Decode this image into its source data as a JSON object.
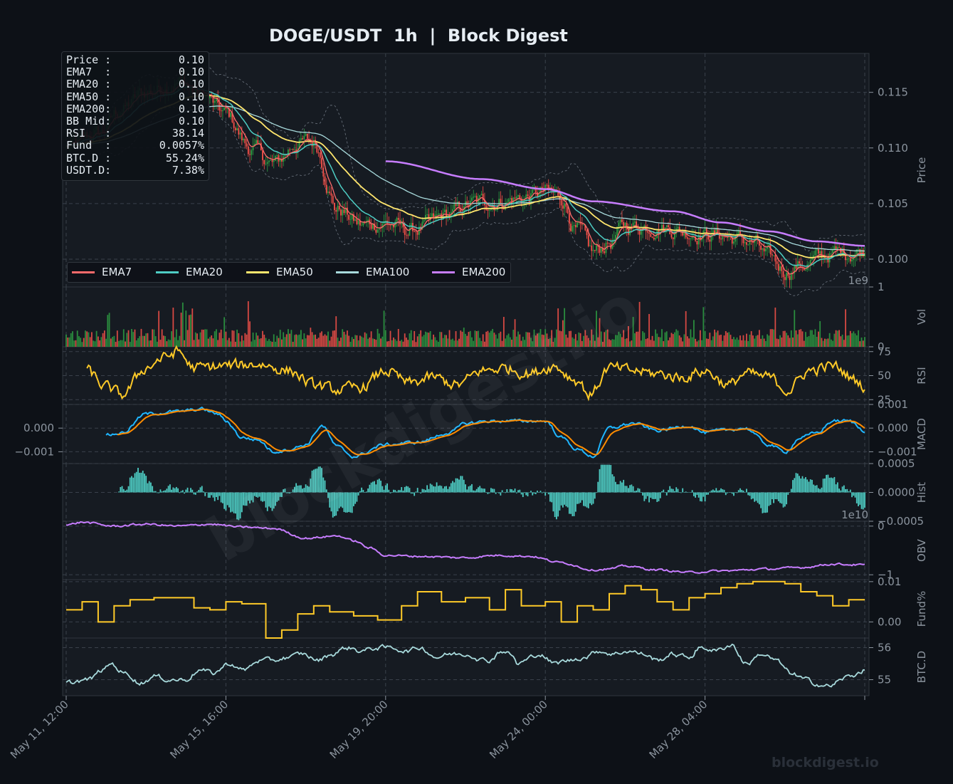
{
  "title": "DOGE/USDT  1h  |  Block Digest",
  "watermark": "blockdigest.io",
  "footer": "blockdigest.io",
  "colors": {
    "background": "#0d1117",
    "panel": "#161b22",
    "grid": "#3a414b",
    "text": "#8b949e",
    "up": "#2ea043",
    "down": "#f85149",
    "ema7": "#ff6b6b",
    "ema20": "#4ecdc4",
    "ema50": "#ffe66d",
    "ema100": "#a8dadc",
    "ema200": "#c77dff",
    "rsi": "#ffca28",
    "macd": "#1fb6ff",
    "signal": "#ff8c00",
    "hist": "#4ecdc4",
    "obv": "#c77dff",
    "fund": "#ffca28",
    "btcd": "#a8dadc"
  },
  "info_box": [
    {
      "key": "Price :",
      "value": "0.10"
    },
    {
      "key": "EMA7  :",
      "value": "0.10"
    },
    {
      "key": "EMA20 :",
      "value": "0.10"
    },
    {
      "key": "EMA50 :",
      "value": "0.10"
    },
    {
      "key": "EMA200:",
      "value": "0.10"
    },
    {
      "key": "BB Mid:",
      "value": "0.10"
    },
    {
      "key": "RSI   :",
      "value": "38.14"
    },
    {
      "key": "Fund  :",
      "value": "0.0057%"
    },
    {
      "key": "BTC.D :",
      "value": "55.24%"
    },
    {
      "key": "USDT.D:",
      "value": "7.38%"
    }
  ],
  "legend": [
    "EMA7",
    "EMA20",
    "EMA50",
    "EMA100",
    "EMA200"
  ],
  "chart_data": {
    "type": "line",
    "x_ticks": [
      "May 11, 12:00",
      "May 15, 16:00",
      "May 19, 20:00",
      "May 24, 00:00",
      "May 28, 04:00"
    ],
    "bars": 501,
    "panels": [
      {
        "id": "price",
        "ylabel": "Price",
        "ylim": [
          0.0975,
          0.1185
        ],
        "ticks": [
          "0.115",
          "0.110",
          "0.105",
          "0.100"
        ],
        "tick_values": [
          0.115,
          0.11,
          0.105,
          0.1
        ],
        "series_names": [
          "EMA7",
          "EMA20",
          "EMA50",
          "EMA100",
          "EMA200"
        ],
        "anchors": [
          [
            0,
            0.11
          ],
          [
            20,
            0.1112
          ],
          [
            35,
            0.1135
          ],
          [
            50,
            0.115
          ],
          [
            70,
            0.116
          ],
          [
            85,
            0.1148
          ],
          [
            100,
            0.113
          ],
          [
            115,
            0.11
          ],
          [
            130,
            0.1085
          ],
          [
            145,
            0.1105
          ],
          [
            155,
            0.1105
          ],
          [
            170,
            0.1045
          ],
          [
            185,
            0.103
          ],
          [
            200,
            0.1033
          ],
          [
            215,
            0.1025
          ],
          [
            225,
            0.103
          ],
          [
            240,
            0.104
          ],
          [
            255,
            0.105
          ],
          [
            270,
            0.1052
          ],
          [
            285,
            0.1055
          ],
          [
            300,
            0.106
          ],
          [
            310,
            0.1055
          ],
          [
            320,
            0.1025
          ],
          [
            330,
            0.1005
          ],
          [
            340,
            0.1015
          ],
          [
            350,
            0.103
          ],
          [
            370,
            0.103
          ],
          [
            390,
            0.1025
          ],
          [
            410,
            0.1022
          ],
          [
            420,
            0.1018
          ],
          [
            430,
            0.1015
          ],
          [
            440,
            0.1
          ],
          [
            450,
            0.099
          ],
          [
            460,
            0.0995
          ],
          [
            480,
            0.1005
          ],
          [
            500,
            0.1008
          ]
        ],
        "ema200_anchors": [
          [
            200,
            0.1088
          ],
          [
            260,
            0.1072
          ],
          [
            300,
            0.1063
          ],
          [
            330,
            0.1052
          ],
          [
            380,
            0.1043
          ],
          [
            410,
            0.1033
          ],
          [
            440,
            0.1025
          ],
          [
            470,
            0.1016
          ],
          [
            500,
            0.1012
          ]
        ],
        "exponent_label": "1e9"
      },
      {
        "id": "vol",
        "ylabel": "Vol",
        "ylim": [
          0,
          1.0
        ],
        "ticks": [
          "1",
          "0"
        ],
        "tick_values": [
          1.0,
          0.0
        ]
      },
      {
        "id": "rsi",
        "ylabel": "RSI",
        "ylim": [
          20,
          80
        ],
        "ticks": [
          "75",
          "50",
          "25"
        ],
        "tick_values": [
          75,
          50,
          25
        ],
        "anchors": [
          [
            13,
            55
          ],
          [
            25,
            38
          ],
          [
            35,
            30
          ],
          [
            50,
            58
          ],
          [
            60,
            68
          ],
          [
            70,
            75
          ],
          [
            80,
            58
          ],
          [
            100,
            60
          ],
          [
            120,
            62
          ],
          [
            140,
            55
          ],
          [
            155,
            40
          ],
          [
            170,
            35
          ],
          [
            185,
            38
          ],
          [
            200,
            55
          ],
          [
            215,
            42
          ],
          [
            230,
            48
          ],
          [
            245,
            40
          ],
          [
            260,
            55
          ],
          [
            275,
            58
          ],
          [
            290,
            52
          ],
          [
            305,
            60
          ],
          [
            320,
            45
          ],
          [
            328,
            30
          ],
          [
            340,
            58
          ],
          [
            355,
            55
          ],
          [
            370,
            52
          ],
          [
            385,
            48
          ],
          [
            400,
            55
          ],
          [
            415,
            40
          ],
          [
            425,
            52
          ],
          [
            440,
            48
          ],
          [
            452,
            35
          ],
          [
            465,
            55
          ],
          [
            480,
            60
          ],
          [
            495,
            45
          ],
          [
            500,
            38
          ]
        ]
      },
      {
        "id": "macd",
        "ylabel": "MACD",
        "ylim": [
          -0.0015,
          0.001
        ],
        "ticks": [
          "0.001",
          "0.000",
          "−0.001"
        ],
        "tick_values": [
          0.001,
          0.0,
          -0.001
        ],
        "left_ticks": [
          "0.000",
          "−0.001"
        ],
        "left_tick_values": [
          0.0,
          -0.001
        ],
        "anchors": [
          [
            25,
            -0.0003
          ],
          [
            35,
            -0.0002
          ],
          [
            50,
            0.0006
          ],
          [
            70,
            0.0007
          ],
          [
            85,
            0.0008
          ],
          [
            95,
            0.0006
          ],
          [
            100,
            0.0003
          ],
          [
            110,
            -0.0004
          ],
          [
            120,
            -0.0005
          ],
          [
            130,
            -0.001
          ],
          [
            140,
            -0.0009
          ],
          [
            150,
            -0.0007
          ],
          [
            160,
            0.0001
          ],
          [
            170,
            -0.0008
          ],
          [
            180,
            -0.0012
          ],
          [
            200,
            -0.0007
          ],
          [
            220,
            -0.0006
          ],
          [
            240,
            -0.0002
          ],
          [
            250,
            0.0002
          ],
          [
            265,
            0.0003
          ],
          [
            280,
            0.0003
          ],
          [
            290,
            0.0003
          ],
          [
            300,
            0.0003
          ],
          [
            310,
            -0.0004
          ],
          [
            320,
            -0.0009
          ],
          [
            330,
            -0.0012
          ],
          [
            340,
            0.0
          ],
          [
            355,
            0.0002
          ],
          [
            370,
            -0.0001
          ],
          [
            390,
            0.0001
          ],
          [
            400,
            -0.0002
          ],
          [
            410,
            -0.0001
          ],
          [
            425,
            0.0
          ],
          [
            440,
            -0.0007
          ],
          [
            450,
            -0.001
          ],
          [
            460,
            -0.0004
          ],
          [
            470,
            -0.0002
          ],
          [
            480,
            0.0003
          ],
          [
            490,
            0.0003
          ],
          [
            500,
            -0.0001
          ]
        ]
      },
      {
        "id": "hist",
        "ylabel": "Hist",
        "ylim": [
          -0.0005,
          0.0005
        ],
        "ticks": [
          "0.0005",
          "0.0000",
          "−0.0005"
        ],
        "tick_values": [
          0.0005,
          0.0,
          -0.0005
        ],
        "exponent_label": "1e10"
      },
      {
        "id": "obv",
        "ylabel": "OBV",
        "ylim": [
          -1.1,
          0.1
        ],
        "ticks": [
          "0",
          "−1"
        ],
        "tick_values": [
          0,
          -1
        ],
        "anchors": [
          [
            0,
            0.02
          ],
          [
            10,
            0.08
          ],
          [
            30,
            0.0
          ],
          [
            50,
            0.04
          ],
          [
            70,
            0.0
          ],
          [
            90,
            0.04
          ],
          [
            110,
            -0.02
          ],
          [
            130,
            -0.05
          ],
          [
            150,
            -0.25
          ],
          [
            170,
            -0.2
          ],
          [
            180,
            -0.3
          ],
          [
            190,
            -0.45
          ],
          [
            200,
            -0.6
          ],
          [
            220,
            -0.62
          ],
          [
            250,
            -0.65
          ],
          [
            270,
            -0.6
          ],
          [
            290,
            -0.62
          ],
          [
            310,
            -0.75
          ],
          [
            330,
            -0.9
          ],
          [
            340,
            -0.88
          ],
          [
            350,
            -0.82
          ],
          [
            370,
            -0.9
          ],
          [
            390,
            -0.95
          ],
          [
            410,
            -0.92
          ],
          [
            440,
            -0.88
          ],
          [
            460,
            -0.85
          ],
          [
            480,
            -0.78
          ],
          [
            500,
            -0.8
          ]
        ]
      },
      {
        "id": "fund",
        "ylabel": "Fund%",
        "ylim": [
          -0.004,
          0.0105
        ],
        "ticks": [
          "0.01",
          "0.00"
        ],
        "tick_values": [
          0.01,
          0.0
        ],
        "anchors": [
          [
            0,
            0.003
          ],
          [
            10,
            0.005
          ],
          [
            20,
            0.0
          ],
          [
            30,
            0.004
          ],
          [
            40,
            0.0055
          ],
          [
            55,
            0.006
          ],
          [
            70,
            0.006
          ],
          [
            80,
            0.0035
          ],
          [
            90,
            0.003
          ],
          [
            100,
            0.005
          ],
          [
            110,
            0.0045
          ],
          [
            125,
            -0.004
          ],
          [
            135,
            -0.002
          ],
          [
            145,
            0.002
          ],
          [
            155,
            0.004
          ],
          [
            165,
            0.0025
          ],
          [
            180,
            0.0015
          ],
          [
            195,
            0.0005
          ],
          [
            210,
            0.004
          ],
          [
            220,
            0.0075
          ],
          [
            235,
            0.005
          ],
          [
            250,
            0.006
          ],
          [
            265,
            0.003
          ],
          [
            275,
            0.008
          ],
          [
            285,
            0.004
          ],
          [
            300,
            0.005
          ],
          [
            310,
            0.0
          ],
          [
            320,
            0.004
          ],
          [
            330,
            0.003
          ],
          [
            340,
            0.007
          ],
          [
            350,
            0.009
          ],
          [
            360,
            0.008
          ],
          [
            370,
            0.005
          ],
          [
            380,
            0.003
          ],
          [
            390,
            0.006
          ],
          [
            400,
            0.007
          ],
          [
            410,
            0.0085
          ],
          [
            420,
            0.0095
          ],
          [
            430,
            0.01
          ],
          [
            440,
            0.01
          ],
          [
            450,
            0.0095
          ],
          [
            460,
            0.0075
          ],
          [
            470,
            0.0065
          ],
          [
            480,
            0.004
          ],
          [
            490,
            0.0055
          ],
          [
            500,
            0.0055
          ]
        ]
      },
      {
        "id": "btcd",
        "ylabel": "BTC.D",
        "ylim": [
          54.5,
          56.3
        ],
        "ticks": [
          "56",
          "55"
        ],
        "tick_values": [
          56,
          55
        ],
        "anchors": [
          [
            0,
            54.9
          ],
          [
            15,
            55.0
          ],
          [
            25,
            55.3
          ],
          [
            30,
            55.5
          ],
          [
            40,
            55.2
          ],
          [
            50,
            54.9
          ],
          [
            60,
            55.1
          ],
          [
            70,
            55.0
          ],
          [
            80,
            55.0
          ],
          [
            90,
            55.3
          ],
          [
            100,
            55.2
          ],
          [
            110,
            55.5
          ],
          [
            120,
            55.3
          ],
          [
            130,
            55.6
          ],
          [
            140,
            55.6
          ],
          [
            150,
            55.7
          ],
          [
            160,
            55.8
          ],
          [
            170,
            55.6
          ],
          [
            180,
            55.8
          ],
          [
            190,
            56.0
          ],
          [
            200,
            55.9
          ],
          [
            210,
            56.0
          ],
          [
            220,
            56.0
          ],
          [
            230,
            55.9
          ],
          [
            240,
            56.0
          ],
          [
            250,
            55.7
          ],
          [
            260,
            55.8
          ],
          [
            270,
            55.8
          ],
          [
            285,
            55.6
          ],
          [
            295,
            55.9
          ],
          [
            300,
            55.8
          ],
          [
            305,
            55.5
          ],
          [
            320,
            55.8
          ],
          [
            330,
            55.5
          ],
          [
            340,
            55.6
          ],
          [
            350,
            55.7
          ],
          [
            360,
            55.9
          ],
          [
            370,
            55.8
          ],
          [
            380,
            55.9
          ],
          [
            390,
            55.8
          ],
          [
            400,
            55.6
          ],
          [
            410,
            55.8
          ],
          [
            420,
            55.7
          ],
          [
            430,
            56.0
          ],
          [
            440,
            55.9
          ],
          [
            450,
            56.1
          ],
          [
            460,
            55.5
          ],
          [
            470,
            55.8
          ],
          [
            480,
            55.6
          ],
          [
            490,
            55.2
          ],
          [
            500,
            55.0
          ],
          [
            505,
            54.9
          ],
          [
            515,
            54.8
          ],
          [
            530,
            55.1
          ],
          [
            540,
            55.3
          ]
        ]
      }
    ]
  }
}
